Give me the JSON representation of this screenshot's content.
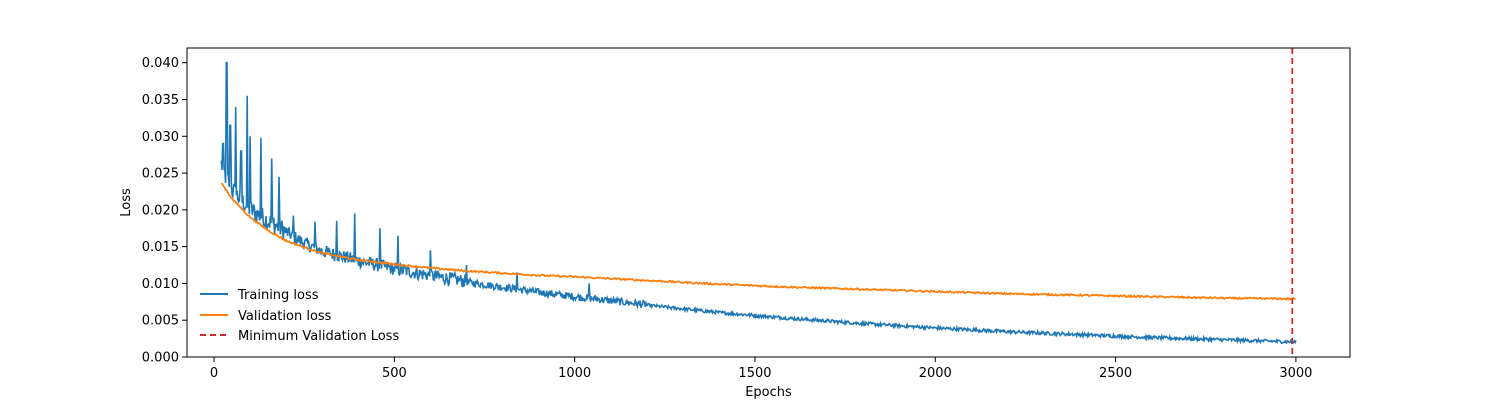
{
  "chart_data": {
    "type": "line",
    "title": "",
    "xlabel": "Epochs",
    "ylabel": "Loss",
    "xlim": [
      -75,
      3150
    ],
    "ylim": [
      0.0,
      0.042
    ],
    "x_ticks": [
      0,
      500,
      1000,
      1500,
      2000,
      2500,
      3000
    ],
    "x_tick_labels": [
      "0",
      "500",
      "1000",
      "1500",
      "2000",
      "2500",
      "3000"
    ],
    "y_ticks": [
      0.0,
      0.005,
      0.01,
      0.015,
      0.02,
      0.025,
      0.03,
      0.035,
      0.04
    ],
    "y_tick_labels": [
      "0.000",
      "0.005",
      "0.010",
      "0.015",
      "0.020",
      "0.025",
      "0.030",
      "0.035",
      "0.040"
    ],
    "grid": false,
    "legend_position": "lower-left",
    "series": [
      {
        "name": "Training loss",
        "color": "#1f77b4",
        "style": "solid",
        "x": [
          20,
          30,
          50,
          75,
          100,
          150,
          200,
          250,
          300,
          400,
          500,
          600,
          700,
          800,
          900,
          1000,
          1200,
          1400,
          1600,
          1800,
          2000,
          2200,
          2400,
          2600,
          2800,
          3000
        ],
        "y": [
          0.026,
          0.0245,
          0.0225,
          0.021,
          0.0198,
          0.0182,
          0.0168,
          0.0153,
          0.0142,
          0.0129,
          0.0118,
          0.0109,
          0.0101,
          0.0094,
          0.0087,
          0.0081,
          0.007,
          0.006,
          0.0052,
          0.0045,
          0.0039,
          0.0034,
          0.003,
          0.0026,
          0.0023,
          0.002
        ],
        "spikes": [
          {
            "x": 25,
            "y": 0.029
          },
          {
            "x": 35,
            "y": 0.04
          },
          {
            "x": 45,
            "y": 0.0315
          },
          {
            "x": 60,
            "y": 0.034
          },
          {
            "x": 75,
            "y": 0.028
          },
          {
            "x": 92,
            "y": 0.0355
          },
          {
            "x": 100,
            "y": 0.03
          },
          {
            "x": 130,
            "y": 0.0298
          },
          {
            "x": 160,
            "y": 0.027
          },
          {
            "x": 180,
            "y": 0.0245
          },
          {
            "x": 220,
            "y": 0.0192
          },
          {
            "x": 280,
            "y": 0.0184
          },
          {
            "x": 340,
            "y": 0.0185
          },
          {
            "x": 390,
            "y": 0.0195
          },
          {
            "x": 460,
            "y": 0.0175
          },
          {
            "x": 510,
            "y": 0.0165
          },
          {
            "x": 600,
            "y": 0.0145
          },
          {
            "x": 700,
            "y": 0.0125
          },
          {
            "x": 840,
            "y": 0.0115
          },
          {
            "x": 1040,
            "y": 0.01
          }
        ]
      },
      {
        "name": "Validation loss",
        "color": "#ff7f0e",
        "style": "solid",
        "x": [
          20,
          50,
          100,
          150,
          200,
          250,
          300,
          400,
          500,
          600,
          700,
          800,
          900,
          1000,
          1200,
          1400,
          1600,
          1800,
          2000,
          2200,
          2400,
          2600,
          2800,
          3000
        ],
        "y": [
          0.0237,
          0.0215,
          0.019,
          0.0172,
          0.0158,
          0.0149,
          0.0141,
          0.0132,
          0.0126,
          0.0121,
          0.0117,
          0.0114,
          0.0111,
          0.0109,
          0.0104,
          0.0099,
          0.0095,
          0.0092,
          0.0089,
          0.0086,
          0.0084,
          0.0082,
          0.008,
          0.0079
        ]
      },
      {
        "name": "Minimum Validation Loss",
        "color": "#d62728",
        "style": "dashed",
        "vline_x": 2990
      }
    ]
  }
}
